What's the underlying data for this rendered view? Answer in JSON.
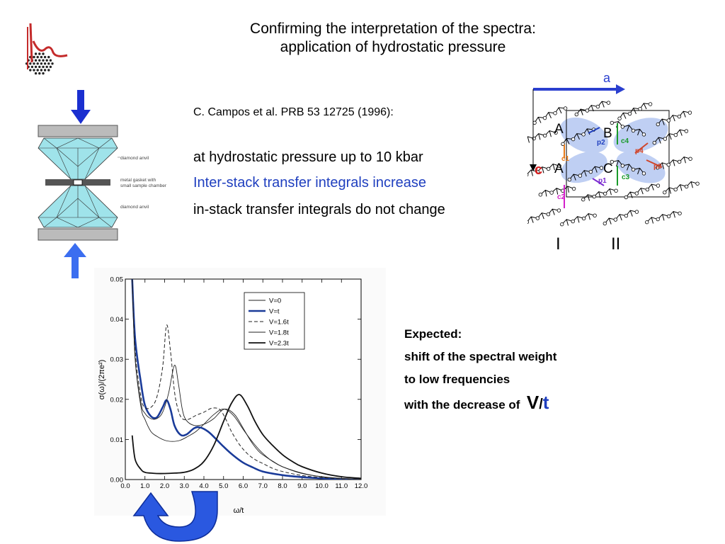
{
  "title": {
    "line1": "Confirming the interpretation of the spectra:",
    "line2": "application of hydrostatic pressure"
  },
  "reference": "C. Campos et al. PRB 53 12725 (1996):",
  "bullets": [
    "at hydrostatic pressure up to 10 kbar",
    "Inter-stack transfer integrals increase",
    "in-stack transfer integrals do not change"
  ],
  "expected": {
    "heading": "Expected:",
    "line1": "shift of the spectral weight",
    "line2": "to low frequencies",
    "line3": "with the decrease of",
    "V": "V",
    "slash": "/",
    "t": "t"
  },
  "anvil": {
    "labels": [
      "diamond anvil",
      "metal gasket with",
      "small sample chamber",
      "diamond anvil"
    ]
  },
  "crystal": {
    "axis_a": "a",
    "axis_c": "c",
    "sites": [
      "A",
      "B",
      "A",
      "C"
    ],
    "bonds": [
      "p2",
      "c4",
      "p4",
      "c1",
      "p3",
      "c3",
      "c2",
      "p1"
    ],
    "stacks": [
      "I",
      "II"
    ]
  },
  "chart_data": {
    "type": "line",
    "title": "",
    "xlabel": "ω/t",
    "ylabel": "σ(ω)/(2πe²)",
    "xlim": [
      0,
      12
    ],
    "ylim": [
      0,
      0.05
    ],
    "xticks": [
      "0.0",
      "1.0",
      "2.0",
      "3.0",
      "4.0",
      "5.0",
      "6.0",
      "7.0",
      "8.0",
      "9.0",
      "10.0",
      "11.0",
      "12.0"
    ],
    "yticks": [
      "0.00",
      "0.01",
      "0.02",
      "0.03",
      "0.04",
      "0.05"
    ],
    "legend_position": "top-right",
    "series": [
      {
        "name": "V=0",
        "style": "thin",
        "color": "#222222",
        "x": [
          0.35,
          0.5,
          0.8,
          1.0,
          1.3,
          1.6,
          2.0,
          2.4,
          2.8,
          3.2,
          3.6,
          4.0,
          4.5,
          5.0,
          5.5,
          6.0,
          6.5,
          7.0,
          7.5,
          8.0,
          9.0,
          10.0,
          11.0,
          12.0
        ],
        "y": [
          0.05,
          0.03,
          0.018,
          0.015,
          0.012,
          0.0108,
          0.0098,
          0.0095,
          0.0098,
          0.0108,
          0.012,
          0.0138,
          0.0162,
          0.0176,
          0.016,
          0.0125,
          0.0092,
          0.0065,
          0.0045,
          0.0032,
          0.0015,
          0.0007,
          0.0002,
          0.0001
        ]
      },
      {
        "name": "V=t",
        "style": "bold-blue",
        "color": "#1a3b99",
        "x": [
          0.35,
          0.5,
          0.8,
          1.0,
          1.3,
          1.6,
          1.9,
          2.1,
          2.3,
          2.5,
          2.8,
          3.1,
          3.5,
          3.8,
          4.2,
          4.6,
          5.0,
          5.5,
          6.0,
          6.5,
          7.0,
          8.0,
          9.0,
          10.0,
          11.0,
          12.0
        ],
        "y": [
          0.05,
          0.035,
          0.024,
          0.0185,
          0.0158,
          0.0155,
          0.018,
          0.0198,
          0.0175,
          0.0135,
          0.0112,
          0.0112,
          0.0128,
          0.013,
          0.012,
          0.0102,
          0.0082,
          0.006,
          0.0042,
          0.003,
          0.002,
          0.0011,
          0.0006,
          0.0003,
          0.0001,
          0.0
        ]
      },
      {
        "name": "V=1.6t",
        "style": "dashed",
        "color": "#222222",
        "x": [
          0.35,
          0.5,
          0.8,
          1.0,
          1.3,
          1.6,
          1.9,
          2.1,
          2.3,
          2.5,
          2.7,
          2.9,
          3.2,
          3.6,
          4.0,
          4.4,
          4.8,
          5.1,
          5.4,
          5.8,
          6.2,
          6.6,
          7.0,
          7.5,
          8.0,
          9.0,
          10.0,
          11.0,
          12.0
        ],
        "y": [
          0.05,
          0.032,
          0.0205,
          0.018,
          0.018,
          0.0205,
          0.028,
          0.0385,
          0.032,
          0.022,
          0.0172,
          0.0152,
          0.015,
          0.016,
          0.0168,
          0.0178,
          0.0175,
          0.0152,
          0.012,
          0.0088,
          0.0065,
          0.005,
          0.004,
          0.0028,
          0.002,
          0.001,
          0.0005,
          0.0002,
          0.0001
        ]
      },
      {
        "name": "V=1.8t",
        "style": "thin",
        "color": "#222222",
        "x": [
          0.35,
          0.5,
          0.8,
          1.0,
          1.3,
          1.6,
          1.9,
          2.2,
          2.5,
          2.7,
          2.9,
          3.1,
          3.5,
          4.0,
          4.5,
          4.9,
          5.2,
          5.6,
          6.0,
          6.4,
          6.8,
          7.2,
          7.6,
          8.0,
          9.0,
          10.0,
          11.0,
          12.0
        ],
        "y": [
          0.05,
          0.03,
          0.019,
          0.0165,
          0.0152,
          0.0152,
          0.0168,
          0.0215,
          0.0285,
          0.024,
          0.0175,
          0.0148,
          0.0135,
          0.0138,
          0.0152,
          0.0172,
          0.0175,
          0.016,
          0.0128,
          0.0095,
          0.007,
          0.0055,
          0.0043,
          0.0032,
          0.0016,
          0.0007,
          0.0003,
          0.0001
        ]
      },
      {
        "name": "V=2.3t",
        "style": "bold",
        "color": "#111111",
        "x": [
          0.35,
          0.5,
          0.8,
          1.0,
          1.3,
          1.6,
          2.0,
          2.5,
          3.0,
          3.5,
          4.0,
          4.5,
          5.0,
          5.4,
          5.8,
          6.2,
          6.6,
          7.0,
          7.5,
          8.0,
          8.5,
          9.0,
          10.0,
          11.0,
          12.0
        ],
        "y": [
          0.011,
          0.005,
          0.0025,
          0.0018,
          0.0016,
          0.0015,
          0.0015,
          0.0016,
          0.0018,
          0.0026,
          0.0045,
          0.0085,
          0.0145,
          0.019,
          0.0212,
          0.0185,
          0.0145,
          0.0112,
          0.0085,
          0.0062,
          0.0045,
          0.0032,
          0.0016,
          0.0007,
          0.0003
        ]
      }
    ]
  }
}
